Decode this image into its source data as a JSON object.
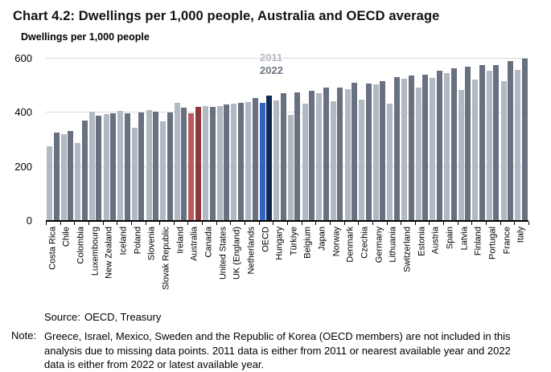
{
  "title": "Chart 4.2: Dwellings per 1,000 people, Australia and OECD average",
  "axis_label": "Dwellings per 1,000 people",
  "legend": {
    "series1": "2011",
    "series2": "2022"
  },
  "source_label": "Source:",
  "source_value": "OECD, Treasury",
  "note_label": "Note:",
  "note_text": "Greece, Israel, Mexico, Sweden and the Republic of Korea (OECD members) are not included in this analysis due to missing data points. 2011 data is either from 2011 or nearest available year and 2022 data is either from 2022 or latest available year.",
  "colors": {
    "bar_2011_default": "#b3b9c2",
    "bar_2022_default": "#68717f",
    "bar_2011_australia": "#bd5a5c",
    "bar_2022_australia": "#8f383d",
    "bar_2011_oecd": "#2f64c6",
    "bar_2022_oecd": "#112a52",
    "gridline": "#d8d8d8",
    "axis": "#000000",
    "legend_2011_text": "#b3bac4",
    "legend_2022_text": "#6d7585"
  },
  "chart_data": {
    "type": "bar",
    "title": "Chart 4.2: Dwellings per 1,000 people, Australia and OECD average",
    "xlabel": "",
    "ylabel": "Dwellings per 1,000 people",
    "ylim": [
      0,
      600
    ],
    "y_ticks": [
      600,
      400,
      200,
      0
    ],
    "grid": "horizontal",
    "legend_position": "top-center",
    "categories": [
      "Costa Rica",
      "Chile",
      "Colombia",
      "Luxembourg",
      "New Zealand",
      "Iceland",
      "Poland",
      "Slovenia",
      "Slovak Republic",
      "Ireland",
      "Australia",
      "Canada",
      "United States",
      "UK (England)",
      "Netherlands",
      "OECD",
      "Hungary",
      "Türkiye",
      "Belgium",
      "Japan",
      "Norway",
      "Denmark",
      "Czechia",
      "Germany",
      "Lithuania",
      "Switzerland",
      "Estonia",
      "Austria",
      "Spain",
      "Latvia",
      "Finland",
      "Portugal",
      "France",
      "Italy"
    ],
    "series": [
      {
        "name": "2011",
        "values": [
          272,
          318,
          285,
          400,
          393,
          403,
          342,
          406,
          365,
          433,
          396,
          421,
          422,
          432,
          438,
          435,
          442,
          388,
          430,
          470,
          440,
          483,
          446,
          501,
          431,
          523,
          490,
          525,
          543,
          482,
          521,
          553,
          513,
          557
        ]
      },
      {
        "name": "2022",
        "values": [
          323,
          330,
          367,
          385,
          396,
          394,
          398,
          402,
          399,
          415,
          418,
          419,
          427,
          435,
          451,
          462,
          470,
          473,
          478,
          491,
          491,
          508,
          506,
          514,
          529,
          535,
          538,
          554,
          561,
          566,
          574,
          572,
          589,
          598
        ]
      }
    ],
    "highlighted_categories": {
      "Australia": "red-pair",
      "OECD": "blue-pair"
    }
  }
}
